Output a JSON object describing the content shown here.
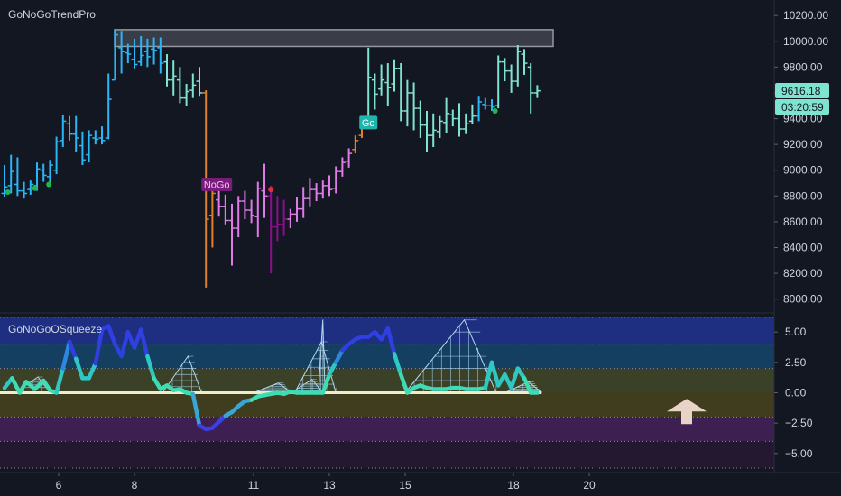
{
  "colors": {
    "background": "#131722",
    "go_strong": "#29b6f6",
    "go_weak": "#7fe3d1",
    "nogo_strong": "#8e0f8e",
    "nogo_weak": "#e07ae8",
    "amber": "#e07f2a",
    "price_badge": "#7fe3d1",
    "resistance": "#5b5f6b",
    "squeeze_line": "#eceecb",
    "arrow": "#e9d3c7",
    "go_dot": "#1eb84a",
    "nogo_dot": "#e0303a"
  },
  "chart_data": [
    {
      "type": "bar",
      "title": "GoNoGoTrendPro",
      "x_axis": {
        "tick_labels": [
          "6",
          "8",
          "11",
          "13",
          "15",
          "18",
          "20"
        ],
        "tick_positions": [
          5,
          12,
          23,
          30,
          37,
          47,
          54
        ]
      },
      "y_axis": {
        "range": [
          7900,
          10320
        ],
        "ticks": [
          10200,
          10000,
          9800,
          9600,
          9400,
          9200,
          9000,
          8800,
          8600,
          8400,
          8200,
          8000
        ]
      },
      "last_price": "9616.18",
      "countdown": "03:20:59",
      "resistance_zone": {
        "x_range": [
          10,
          50
        ],
        "y_range": [
          9960,
          10090
        ]
      },
      "annotations": [
        {
          "text": "NoGo",
          "x": 19.6,
          "y": 8890
        },
        {
          "text": "Go",
          "x": 33.6,
          "y": 9370
        }
      ],
      "markers": [
        {
          "x": 0.3,
          "y": 8830,
          "type": "go"
        },
        {
          "x": 2.8,
          "y": 8860,
          "type": "go"
        },
        {
          "x": 4.1,
          "y": 8890,
          "type": "go"
        },
        {
          "x": 24.6,
          "y": 8850,
          "type": "nogo"
        },
        {
          "x": 45.3,
          "y": 9460,
          "type": "go"
        }
      ],
      "series": [
        {
          "name": "candles",
          "ohlc": [
            [
              0,
              8820,
              9040,
              8790,
              8870,
              "go_strong"
            ],
            [
              0.6,
              8880,
              9120,
              8820,
              8990,
              "go_strong"
            ],
            [
              1.2,
              8890,
              9100,
              8800,
              8840,
              "go_strong"
            ],
            [
              1.8,
              8840,
              8910,
              8780,
              8820,
              "go_strong"
            ],
            [
              2.4,
              8850,
              8920,
              8810,
              8890,
              "go_strong"
            ],
            [
              3.0,
              8880,
              9060,
              8840,
              9010,
              "go_strong"
            ],
            [
              3.6,
              9000,
              9050,
              8910,
              8960,
              "go_strong"
            ],
            [
              4.2,
              8950,
              9080,
              8900,
              9040,
              "go_strong"
            ],
            [
              4.8,
              9000,
              9260,
              8970,
              9220,
              "go_strong"
            ],
            [
              5.4,
              9230,
              9430,
              9180,
              9380,
              "go_strong"
            ],
            [
              6.0,
              9360,
              9420,
              9230,
              9280,
              "go_strong"
            ],
            [
              6.6,
              9280,
              9420,
              9140,
              9250,
              "go_strong"
            ],
            [
              7.2,
              9190,
              9300,
              9040,
              9080,
              "go_strong"
            ],
            [
              7.8,
              9120,
              9310,
              9060,
              9270,
              "go_strong"
            ],
            [
              8.4,
              9250,
              9310,
              9200,
              9240,
              "go_strong"
            ],
            [
              9.0,
              9250,
              9340,
              9200,
              9230,
              "go_strong"
            ],
            [
              9.6,
              9250,
              9750,
              9240,
              9550,
              "go_strong"
            ],
            [
              10.2,
              9700,
              10090,
              9700,
              10050,
              "go_strong"
            ],
            [
              10.8,
              9950,
              10080,
              9750,
              9920,
              "go_strong"
            ],
            [
              11.4,
              9910,
              9980,
              9830,
              9900,
              "go_strong"
            ],
            [
              12.0,
              9860,
              10020,
              9790,
              9820,
              "go_strong"
            ],
            [
              12.6,
              9840,
              10040,
              9810,
              9890,
              "go_strong"
            ],
            [
              13.2,
              9920,
              10020,
              9800,
              9880,
              "go_strong"
            ],
            [
              13.8,
              9940,
              10030,
              9820,
              9930,
              "go_strong"
            ],
            [
              14.4,
              9950,
              10030,
              9750,
              9830,
              "go_strong"
            ],
            [
              15.0,
              9840,
              9900,
              9650,
              9700,
              "go_weak"
            ],
            [
              15.6,
              9700,
              9850,
              9580,
              9730,
              "go_weak"
            ],
            [
              16.2,
              9700,
              9800,
              9520,
              9560,
              "go_weak"
            ],
            [
              16.8,
              9560,
              9670,
              9500,
              9610,
              "go_weak"
            ],
            [
              17.4,
              9620,
              9750,
              9560,
              9660,
              "go_weak"
            ],
            [
              18.0,
              9690,
              9800,
              9570,
              9600,
              "go_weak"
            ],
            [
              18.6,
              9600,
              9620,
              8090,
              8620,
              "amber"
            ],
            [
              19.2,
              8650,
              8930,
              8400,
              8820,
              "amber"
            ],
            [
              19.8,
              8770,
              8900,
              8640,
              8720,
              "nogo_weak"
            ],
            [
              20.4,
              8720,
              8810,
              8580,
              8610,
              "nogo_weak"
            ],
            [
              21.0,
              8610,
              8740,
              8260,
              8550,
              "nogo_weak"
            ],
            [
              21.6,
              8550,
              8800,
              8480,
              8760,
              "nogo_weak"
            ],
            [
              22.2,
              8760,
              8840,
              8620,
              8690,
              "nogo_weak"
            ],
            [
              22.8,
              8690,
              8770,
              8590,
              8650,
              "nogo_weak"
            ],
            [
              23.4,
              8640,
              8910,
              8480,
              8860,
              "nogo_weak"
            ],
            [
              24.0,
              8840,
              9050,
              8630,
              8800,
              "nogo_weak"
            ],
            [
              24.6,
              8800,
              8880,
              8200,
              8560,
              "nogo_strong"
            ],
            [
              25.2,
              8560,
              8800,
              8450,
              8580,
              "nogo_strong"
            ],
            [
              25.8,
              8580,
              8770,
              8490,
              8620,
              "nogo_strong"
            ],
            [
              26.4,
              8620,
              8700,
              8550,
              8660,
              "nogo_weak"
            ],
            [
              27.0,
              8660,
              8790,
              8600,
              8700,
              "nogo_weak"
            ],
            [
              27.6,
              8700,
              8870,
              8630,
              8780,
              "nogo_weak"
            ],
            [
              28.2,
              8780,
              8940,
              8720,
              8850,
              "nogo_weak"
            ],
            [
              28.8,
              8850,
              8900,
              8760,
              8820,
              "nogo_weak"
            ],
            [
              29.4,
              8820,
              8920,
              8780,
              8880,
              "nogo_weak"
            ],
            [
              30.0,
              8880,
              8960,
              8800,
              8850,
              "nogo_weak"
            ],
            [
              30.6,
              8860,
              9030,
              8820,
              8990,
              "nogo_weak"
            ],
            [
              31.2,
              8990,
              9100,
              8950,
              9060,
              "nogo_weak"
            ],
            [
              31.8,
              9070,
              9170,
              9020,
              9130,
              "nogo_weak"
            ],
            [
              32.4,
              9160,
              9270,
              9130,
              9230,
              "amber"
            ],
            [
              33.0,
              9270,
              9410,
              9250,
              9330,
              "amber"
            ],
            [
              33.6,
              9400,
              9950,
              9400,
              9720,
              "go_weak"
            ],
            [
              34.2,
              9700,
              9750,
              9470,
              9590,
              "go_weak"
            ],
            [
              34.8,
              9630,
              9820,
              9580,
              9700,
              "go_weak"
            ],
            [
              35.4,
              9680,
              9830,
              9500,
              9640,
              "go_weak"
            ],
            [
              36.0,
              9670,
              9860,
              9610,
              9790,
              "go_weak"
            ],
            [
              36.6,
              9790,
              9830,
              9380,
              9460,
              "go_weak"
            ],
            [
              37.2,
              9460,
              9700,
              9340,
              9600,
              "go_weak"
            ],
            [
              37.8,
              9600,
              9680,
              9310,
              9480,
              "go_weak"
            ],
            [
              38.4,
              9480,
              9540,
              9250,
              9350,
              "go_weak"
            ],
            [
              39.0,
              9350,
              9460,
              9140,
              9270,
              "go_weak"
            ],
            [
              39.6,
              9270,
              9440,
              9180,
              9310,
              "go_weak"
            ],
            [
              40.2,
              9300,
              9420,
              9250,
              9380,
              "go_weak"
            ],
            [
              40.8,
              9370,
              9560,
              9290,
              9440,
              "go_weak"
            ],
            [
              41.4,
              9430,
              9470,
              9340,
              9400,
              "go_weak"
            ],
            [
              42.0,
              9400,
              9520,
              9260,
              9320,
              "go_weak"
            ],
            [
              42.6,
              9320,
              9440,
              9280,
              9360,
              "go_weak"
            ],
            [
              43.2,
              9380,
              9510,
              9360,
              9420,
              "go_weak"
            ],
            [
              43.8,
              9420,
              9570,
              9380,
              9530,
              "go_strong"
            ],
            [
              44.4,
              9510,
              9560,
              9470,
              9500,
              "go_strong"
            ],
            [
              45.0,
              9500,
              9550,
              9460,
              9490,
              "go_strong"
            ],
            [
              45.6,
              9500,
              9890,
              9480,
              9840,
              "go_weak"
            ],
            [
              46.2,
              9840,
              9870,
              9690,
              9770,
              "go_weak"
            ],
            [
              46.8,
              9770,
              9820,
              9600,
              9690,
              "go_weak"
            ],
            [
              47.4,
              9690,
              9970,
              9650,
              9920,
              "go_weak"
            ],
            [
              48.0,
              9900,
              9940,
              9740,
              9830,
              "go_weak"
            ],
            [
              48.6,
              9800,
              9830,
              9440,
              9600,
              "go_weak"
            ],
            [
              49.2,
              9600,
              9660,
              9560,
              9616,
              "go_weak"
            ]
          ]
        }
      ]
    },
    {
      "type": "line",
      "title": "GoNoGoOSqueeze",
      "y_axis": {
        "range": [
          -6.5,
          6.5
        ],
        "ticks": [
          5.0,
          2.5,
          0.0,
          -2.5,
          -5.0
        ],
        "tick_labels": [
          "5.00",
          "2.50",
          "0.00",
          "−2.50",
          "−5.00"
        ]
      },
      "bands": [
        {
          "from": 4,
          "to": 6.2,
          "color": "#1e2f82"
        },
        {
          "from": 2,
          "to": 4,
          "color": "#153f60"
        },
        {
          "from": 0,
          "to": 2,
          "color": "#3b4127"
        },
        {
          "from": -2,
          "to": 0,
          "color": "#403d1e"
        },
        {
          "from": -4,
          "to": -2,
          "color": "#3d1f51"
        },
        {
          "from": -6.2,
          "to": -4,
          "color": "#23182f"
        }
      ],
      "dotted_levels": [
        6.2,
        4,
        2,
        -2,
        -4,
        -6.2
      ],
      "zero_line": 0,
      "squeeze_grids": [
        {
          "x_start": 1.0,
          "x_end": 4.2,
          "peak": 1.3
        },
        {
          "x_start": 14.6,
          "x_end": 18.2,
          "peak": 3.0
        },
        {
          "x_start": 23.0,
          "x_end": 26.5,
          "peak": 0.8
        },
        {
          "x_start": 26.5,
          "x_end": 29.4,
          "peak": 1.1
        },
        {
          "x_start": 26.8,
          "x_end": 30.6,
          "peak": 4.2
        },
        {
          "x_start": 29.0,
          "x_end": 29.6,
          "peak": 6.0
        },
        {
          "x_start": 37.0,
          "x_end": 45.4,
          "peak": 6.0
        },
        {
          "x_start": 46.2,
          "x_end": 49.6,
          "peak": 0.9
        }
      ],
      "series": [
        {
          "name": "oscillator",
          "x": [
            0,
            0.7,
            1.4,
            2.0,
            2.8,
            3.6,
            4.2,
            4.8,
            5.4,
            6.0,
            6.6,
            7.2,
            7.8,
            8.4,
            9.0,
            9.6,
            10.2,
            10.8,
            11.4,
            12.0,
            12.6,
            13.2,
            13.8,
            14.4,
            15.0,
            15.6,
            16.2,
            16.8,
            17.4,
            18.0,
            18.6,
            19.2,
            19.8,
            20.4,
            21.0,
            21.6,
            22.2,
            22.8,
            23.4,
            24.0,
            24.6,
            25.2,
            25.8,
            26.4,
            27.0,
            27.6,
            28.2,
            28.8,
            29.4,
            30.0,
            30.6,
            31.2,
            31.8,
            32.4,
            33.0,
            33.6,
            34.2,
            34.8,
            35.4,
            36.0,
            36.6,
            37.2,
            37.8,
            38.4,
            39.0,
            39.6,
            40.2,
            40.8,
            41.4,
            42.0,
            42.6,
            43.2,
            43.8,
            44.4,
            45.0,
            45.6,
            46.2,
            46.8,
            47.4,
            48.0,
            48.6,
            49.2
          ],
          "y": [
            0.4,
            1.2,
            0.0,
            0.9,
            0.3,
            1.0,
            0.2,
            0.0,
            2.0,
            4.2,
            2.8,
            1.2,
            1.2,
            2.4,
            5.2,
            5.5,
            4.0,
            3.0,
            5.0,
            3.7,
            5.2,
            3.0,
            1.2,
            0.3,
            0.6,
            0.2,
            0.3,
            0.0,
            -0.1,
            -2.7,
            -3.0,
            -2.9,
            -2.4,
            -1.9,
            -1.6,
            -1.1,
            -0.7,
            -0.6,
            -0.3,
            -0.2,
            -0.1,
            0.0,
            -0.1,
            0.1,
            0.0,
            0.0,
            0.0,
            0.0,
            0.0,
            1.5,
            2.5,
            3.5,
            4.0,
            4.4,
            4.6,
            4.6,
            5.0,
            4.4,
            5.3,
            3.2,
            1.5,
            0.0,
            0.4,
            0.6,
            0.4,
            0.3,
            0.3,
            0.3,
            0.4,
            0.4,
            0.3,
            0.3,
            0.3,
            0.4,
            2.5,
            0.6,
            1.5,
            0.4,
            2.0,
            1.2,
            0.0,
            0.0
          ]
        }
      ]
    }
  ]
}
